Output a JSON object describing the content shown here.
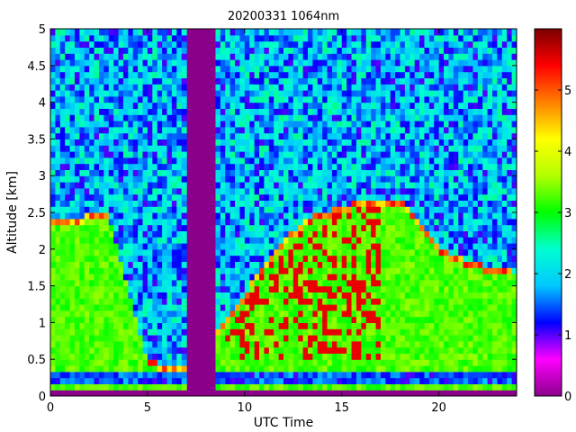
{
  "chart_data": {
    "type": "heatmap",
    "title": "20200331 1064nm",
    "xlabel": "UTC Time",
    "ylabel": "Altitude [km]",
    "xlim": [
      0,
      24
    ],
    "ylim": [
      0,
      5
    ],
    "x_ticks": [
      0,
      5,
      10,
      15,
      20
    ],
    "x_tick_labels": [
      "0",
      "5",
      "10",
      "15",
      "20"
    ],
    "y_ticks": [
      0,
      0.5,
      1,
      1.5,
      2,
      2.5,
      3,
      3.5,
      4,
      4.5,
      5
    ],
    "y_tick_labels": [
      "0",
      "0.5",
      "1",
      "1.5",
      "2",
      "2.5",
      "3",
      "3.5",
      "4",
      "4.5",
      "5"
    ],
    "colorbar": {
      "range": [
        0,
        6
      ],
      "ticks": [
        0,
        1,
        2,
        3,
        4,
        5
      ],
      "tick_labels": [
        "0",
        "1",
        "2",
        "3",
        "4",
        "5"
      ],
      "colormap": "hsv-like (magenta-blue-cyan-green-yellow-red-darkred)"
    },
    "colormap_stops": [
      "#8b008b",
      "#ff00ff",
      "#0000ff",
      "#00c8ff",
      "#00ffd0",
      "#00ff00",
      "#b4ff00",
      "#ffff00",
      "#ff8000",
      "#ff0000",
      "#7a0000"
    ],
    "no_data_color": "#8b008b",
    "grid": false,
    "data_gaps_utc": [
      [
        7.1,
        8.5
      ]
    ],
    "approx_structure": {
      "boundary_layer_top_km_by_hour": {
        "0": 2.4,
        "3": 2.5,
        "5": 0.5,
        "6": 0.4,
        "7": 0.4,
        "9": 1.0,
        "11": 1.8,
        "13": 2.4,
        "15": 2.6,
        "17": 2.7,
        "18": 2.7,
        "20": 2.0,
        "22": 1.8,
        "24": 1.7
      },
      "surface_layer_km": [
        0.15,
        0.3
      ],
      "high_signal_region": {
        "utc": [
          9,
          17
        ],
        "altitude_km": [
          0.5,
          2.6
        ],
        "value_approx": 5.5
      }
    }
  }
}
